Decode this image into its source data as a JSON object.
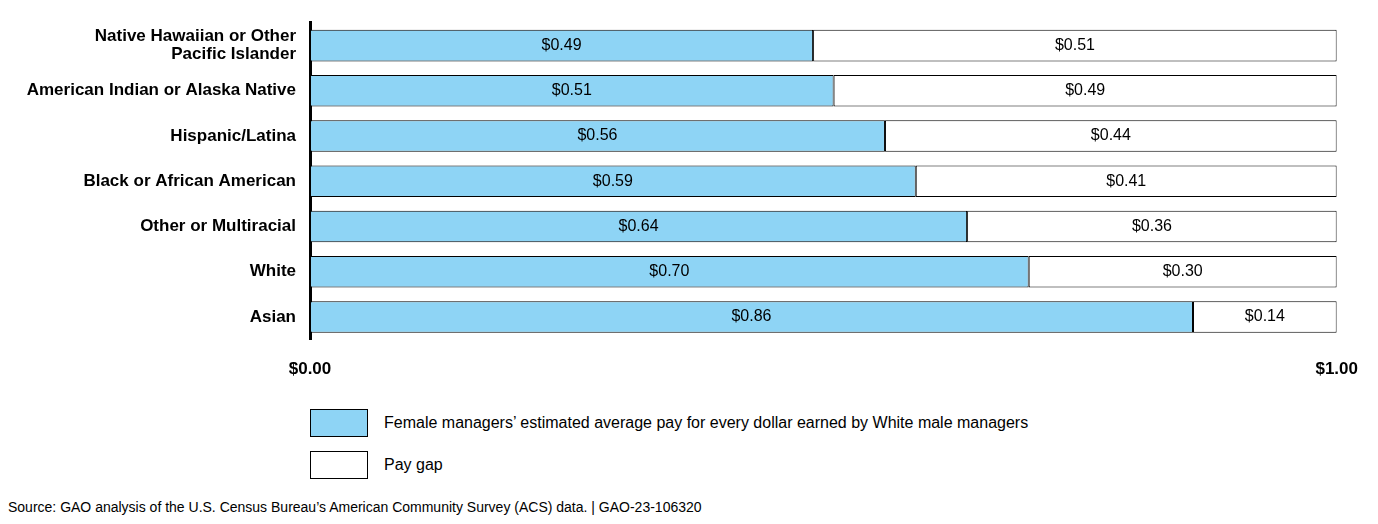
{
  "chart_data": {
    "type": "bar",
    "orientation": "horizontal",
    "stacked": true,
    "categories": [
      [
        "Native Hawaiian or Other",
        "Pacific Islander"
      ],
      "American Indian or Alaska Native",
      "Hispanic/Latina",
      "Black or African American",
      "Other or Multiracial",
      "White",
      "Asian"
    ],
    "series": [
      {
        "name": "Female managers’ estimated average pay for every dollar earned by White male managers",
        "color": "#8ed4f5",
        "values": [
          0.49,
          0.51,
          0.56,
          0.59,
          0.64,
          0.7,
          0.86
        ],
        "value_labels": [
          "$0.49",
          "$0.51",
          "$0.56",
          "$0.59",
          "$0.64",
          "$0.70",
          "$0.86"
        ]
      },
      {
        "name": "Pay gap",
        "color": "#ffffff",
        "values": [
          0.51,
          0.49,
          0.44,
          0.41,
          0.36,
          0.3,
          0.14
        ],
        "value_labels": [
          "$0.51",
          "$0.49",
          "$0.44",
          "$0.41",
          "$0.36",
          "$0.30",
          "$0.14"
        ]
      }
    ],
    "xlim": [
      0,
      1
    ],
    "xticks": [
      {
        "value": 0,
        "label": "$0.00"
      },
      {
        "value": 1,
        "label": "$1.00"
      }
    ],
    "grid": false,
    "legend": "bottom",
    "data_labels": true,
    "source": "Source: GAO analysis of the U.S. Census Bureau’s American Community Survey (ACS) data.  |  GAO-23-106320"
  }
}
